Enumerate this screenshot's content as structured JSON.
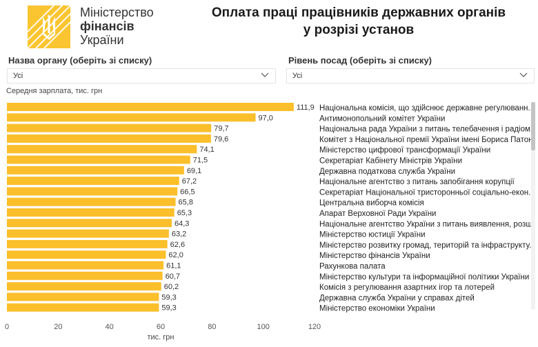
{
  "header": {
    "brand_line1": "Міністерство",
    "brand_line2": "фінансів",
    "brand_line3": "України",
    "title_line1": "Оплата праці працівників державних органів",
    "title_line2": "у розрізі установ"
  },
  "filters": {
    "organ_label": "Назва органу (оберіть зі списку)",
    "organ_value": "Усі",
    "level_label": "Рівень посад (оберіть зі списку)",
    "level_value": "Усі"
  },
  "colors": {
    "bar": "#FBBF2B",
    "logo": "#FBC531",
    "text": "#222222"
  },
  "chart_data": {
    "type": "bar",
    "orientation": "horizontal",
    "title": "",
    "ylabel": "Середня зарплата, тис. грн",
    "xlabel": "тис. грн",
    "xlim": [
      0,
      120
    ],
    "xticks": [
      0,
      20,
      40,
      60,
      80,
      100,
      120
    ],
    "categories": [
      "Національна комісія, що здійснює державне регулюванн...",
      "Антимонопольний комітет України",
      "Національна рада України з питань телебачення і радіом...",
      "Комітет з Національної премії України імені Бориса Патона",
      "Міністерство цифрової трансформації України",
      "Секретаріат Кабінету Міністрів України",
      "Державна податкова служба України",
      "Національне агентство з питань запобігання корупції",
      "Секретаріат Національної тристоронньої соціально-екон...",
      "Центральна виборча комісія",
      "Апарат Верховної Ради України",
      "Національне агентство України з питань виявлення, розш...",
      "Міністерство юстиції України",
      "Міністерство розвитку громад, територій та інфраструкту...",
      "Міністерство фінансів України",
      "Рахункова палата",
      "Міністерство культури та інформаційної політики України",
      "Комісія з регулювання азартних ігор та лотерей",
      "Державна служба України у справах дітей",
      "Міністерство економіки України"
    ],
    "values": [
      111.9,
      97.0,
      79.7,
      79.6,
      74.1,
      71.5,
      69.1,
      67.2,
      66.5,
      65.8,
      65.3,
      64.3,
      63.2,
      62.6,
      62.0,
      61.1,
      60.7,
      60.2,
      59.3,
      59.3
    ],
    "value_labels": [
      "111,9",
      "97,0",
      "79,7",
      "79,6",
      "74,1",
      "71,5",
      "69,1",
      "67,2",
      "66,5",
      "65,8",
      "65,3",
      "64,3",
      "63,2",
      "62,6",
      "62,0",
      "61,1",
      "60,7",
      "60,2",
      "59,3",
      "59,3"
    ]
  }
}
